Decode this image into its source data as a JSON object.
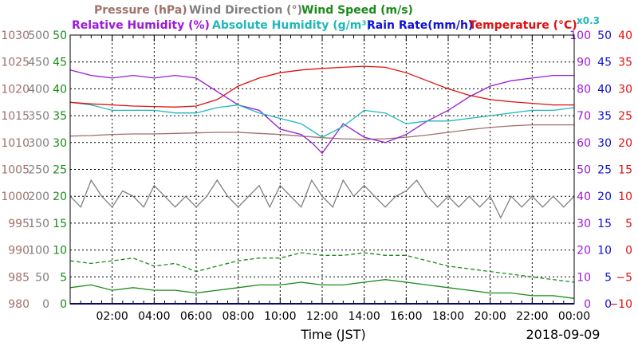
{
  "chart_data": {
    "type": "line",
    "xlabel": "Time (JST)",
    "date": "2018-09-09",
    "x_ticks": [
      "02:00",
      "04:00",
      "06:00",
      "08:00",
      "10:00",
      "12:00",
      "14:00",
      "16:00",
      "18:00",
      "20:00",
      "22:00",
      "00:00"
    ],
    "x_range_hours": [
      0,
      24
    ],
    "grid": true,
    "legend": {
      "row1": [
        "Pressure (hPa)",
        "Wind Direction (°)",
        "Wind Speed (m/s)"
      ],
      "row2": [
        "Relative Humidity (%)",
        "Absolute Humidity (g/m³)",
        "Rain Rate(mm/h)",
        "Temperature (°C)"
      ],
      "scale_note": "x0.3"
    },
    "axes": {
      "pressure": {
        "ticks": [
          "1030",
          "1025",
          "1020",
          "1015",
          "1010",
          "1005",
          "1000",
          "995",
          "990",
          "985",
          "980"
        ],
        "range": [
          980,
          1030
        ],
        "color": "#a0706a"
      },
      "wind_direction": {
        "ticks": [
          "500",
          "450",
          "400",
          "350",
          "300",
          "250",
          "200",
          "150",
          "100",
          "50",
          "0"
        ],
        "range": [
          0,
          500
        ],
        "color": "#808080"
      },
      "wind_speed": {
        "ticks": [
          "50",
          "45",
          "40",
          "35",
          "30",
          "25",
          "20",
          "15",
          "10",
          "5",
          "0"
        ],
        "range": [
          0,
          50
        ],
        "color": "#1a8a1a"
      },
      "relative_humidity": {
        "ticks": [
          "100",
          "90",
          "80",
          "70",
          "60",
          "50",
          "40",
          "30",
          "20",
          "10",
          "0"
        ],
        "range": [
          0,
          100
        ],
        "color": "#9a1ad8"
      },
      "rain_rate": {
        "ticks": [
          "50",
          "45",
          "40",
          "35",
          "30",
          "25",
          "20",
          "15",
          "10",
          "5",
          "0"
        ],
        "range": [
          0,
          50
        ],
        "color": "#1010d8"
      },
      "temperature": {
        "ticks": [
          "40",
          "35",
          "30",
          "25",
          "20",
          "15",
          "10",
          "5",
          "0",
          "−5",
          "−10"
        ],
        "range": [
          -10,
          40
        ],
        "color": "#e01010"
      }
    },
    "series": [
      {
        "name": "Pressure (hPa)",
        "axis": "pressure",
        "color": "#a0706a",
        "x": [
          0,
          1,
          2,
          3,
          4,
          5,
          6,
          7,
          8,
          9,
          10,
          11,
          12,
          13,
          14,
          15,
          16,
          17,
          18,
          19,
          20,
          21,
          22,
          23,
          24
        ],
        "y": [
          1011.2,
          1011.3,
          1011.5,
          1011.6,
          1011.6,
          1011.7,
          1011.8,
          1011.9,
          1011.9,
          1011.7,
          1011.5,
          1011.2,
          1010.9,
          1010.7,
          1010.6,
          1010.7,
          1011.0,
          1011.4,
          1011.9,
          1012.4,
          1012.8,
          1013.1,
          1013.3,
          1013.3,
          1013.3
        ]
      },
      {
        "name": "Wind Direction (°)",
        "axis": "wind_direction",
        "color": "#808080",
        "x": [
          0,
          0.5,
          1,
          1.5,
          2,
          2.5,
          3,
          3.5,
          4,
          4.5,
          5,
          5.5,
          6,
          6.5,
          7,
          7.5,
          8,
          8.5,
          9,
          9.5,
          10,
          10.5,
          11,
          11.5,
          12,
          12.5,
          13,
          13.5,
          14,
          14.5,
          15,
          15.5,
          16,
          16.5,
          17,
          17.5,
          18,
          18.5,
          19,
          19.5,
          20,
          20.5,
          21,
          21.5,
          22,
          22.5,
          23,
          23.5,
          24
        ],
        "y": [
          200,
          180,
          230,
          200,
          180,
          210,
          200,
          180,
          220,
          200,
          180,
          200,
          180,
          200,
          230,
          200,
          180,
          200,
          220,
          180,
          220,
          200,
          180,
          230,
          200,
          180,
          230,
          200,
          220,
          200,
          180,
          200,
          210,
          230,
          200,
          180,
          200,
          180,
          200,
          180,
          200,
          160,
          200,
          180,
          200,
          180,
          200,
          180,
          200
        ]
      },
      {
        "name": "Wind Speed (m/s)",
        "axis": "wind_speed",
        "color": "#1a8a1a",
        "style": "solid",
        "x": [
          0,
          1,
          2,
          3,
          4,
          5,
          6,
          7,
          8,
          9,
          10,
          11,
          12,
          13,
          14,
          15,
          16,
          17,
          18,
          19,
          20,
          21,
          22,
          23,
          24
        ],
        "y": [
          3.0,
          3.5,
          2.5,
          3.0,
          2.5,
          2.5,
          2.0,
          2.5,
          3.0,
          3.5,
          3.5,
          4.0,
          3.5,
          3.5,
          4.0,
          4.5,
          4.0,
          3.5,
          3.0,
          2.5,
          2.0,
          2.0,
          1.5,
          1.5,
          1.0
        ]
      },
      {
        "name": "Wind Speed gust (m/s)",
        "axis": "wind_speed",
        "color": "#1a8a1a",
        "style": "dashed",
        "x": [
          0,
          1,
          2,
          3,
          4,
          5,
          6,
          7,
          8,
          9,
          10,
          11,
          12,
          13,
          14,
          15,
          16,
          17,
          18,
          19,
          20,
          21,
          22,
          23,
          24
        ],
        "y": [
          8.0,
          7.5,
          8.0,
          8.5,
          7.0,
          7.5,
          6.0,
          7.0,
          8.0,
          8.5,
          8.5,
          9.5,
          9.0,
          9.0,
          9.5,
          9.0,
          9.0,
          8.0,
          7.0,
          6.5,
          6.0,
          5.5,
          5.0,
          4.5,
          4.0
        ]
      },
      {
        "name": "Relative Humidity (%)",
        "axis": "relative_humidity",
        "color": "#9a1ad8",
        "x": [
          0,
          1,
          2,
          3,
          4,
          5,
          6,
          7,
          8,
          9,
          10,
          11,
          11.5,
          12,
          13,
          14,
          15,
          16,
          17,
          18,
          19,
          20,
          21,
          22,
          23,
          24
        ],
        "y": [
          87,
          85,
          84,
          85,
          84,
          85,
          84,
          79,
          74,
          72,
          65,
          63,
          60,
          56,
          67,
          62,
          60,
          63,
          68,
          72,
          77,
          81,
          83,
          84,
          85,
          85
        ]
      },
      {
        "name": "Absolute Humidity (g/m³)",
        "axis": "relative_humidity",
        "color": "#20b8b8",
        "x": [
          0,
          1,
          2,
          3,
          4,
          5,
          6,
          7,
          8,
          9,
          10,
          11,
          12,
          13,
          14,
          15,
          16,
          17,
          18,
          19,
          20,
          21,
          22,
          23,
          24
        ],
        "y": [
          75,
          74,
          72,
          72,
          72,
          71,
          71,
          73,
          74,
          71,
          69,
          67,
          62,
          66,
          72,
          71,
          67,
          68,
          68,
          69,
          70,
          71,
          72,
          72,
          73
        ]
      },
      {
        "name": "Temperature (°C)",
        "axis": "temperature",
        "color": "#e01010",
        "x": [
          0,
          1,
          2,
          3,
          4,
          5,
          6,
          7,
          8,
          9,
          10,
          11,
          12,
          13,
          14,
          15,
          16,
          17,
          18,
          19,
          20,
          21,
          22,
          23,
          24
        ],
        "y": [
          27.5,
          27.2,
          27.0,
          26.8,
          26.7,
          26.6,
          26.8,
          28.0,
          30.5,
          32.0,
          33.0,
          33.5,
          33.8,
          34.0,
          34.2,
          34.0,
          33.0,
          31.5,
          30.0,
          28.8,
          28.0,
          27.6,
          27.3,
          27.0,
          27.0
        ]
      },
      {
        "name": "Rain Rate(mm/h)",
        "axis": "rain_rate",
        "color": "#1010d8",
        "x": [
          0,
          24
        ],
        "y": [
          0,
          0
        ]
      }
    ]
  }
}
